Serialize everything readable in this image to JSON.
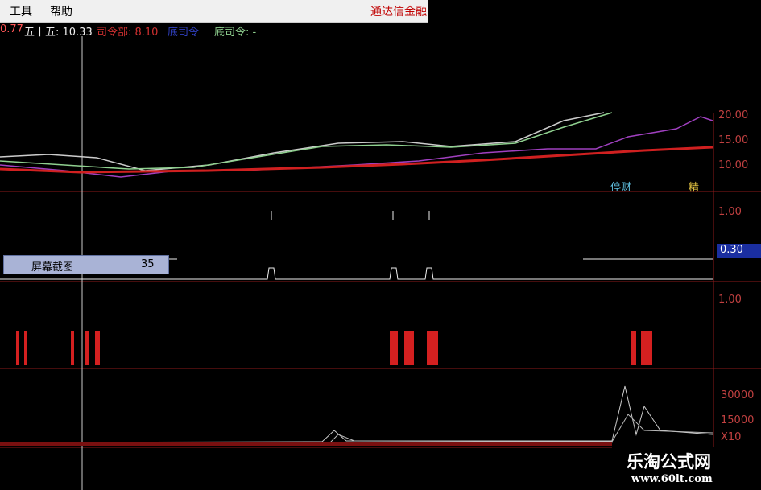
{
  "menu": [
    "工具",
    "帮助"
  ],
  "window_title": "通达信金融",
  "indicators": [
    "0.77",
    "五十五: 10.33",
    "司令部: 8.10",
    "底司令",
    "底司令: -"
  ],
  "price_axis": [
    "20.00",
    "15.00",
    "10.00"
  ],
  "price_markers": [
    "停财",
    "精"
  ],
  "signal_axis": [
    "1.00",
    "0.30"
  ],
  "screenshot_tip": {
    "label": "屏幕截图",
    "value": "35"
  },
  "bar_axis": [
    "1.00"
  ],
  "volume_axis": [
    "30000",
    "15000",
    "X10"
  ],
  "watermark": {
    "name": "乐淘公式网",
    "url": "www.60lt.com"
  }
}
